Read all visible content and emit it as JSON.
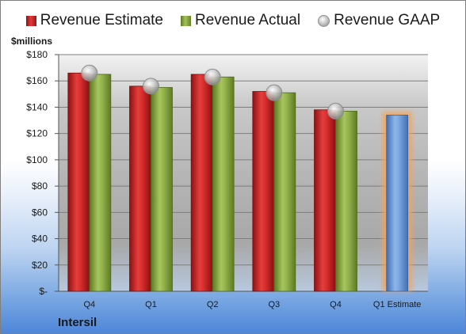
{
  "legend": {
    "estimate": "Revenue Estimate",
    "actual": "Revenue Actual",
    "gaap": "Revenue GAAP"
  },
  "colors": {
    "estimate": "#d42a2a",
    "actual": "#8aaa46",
    "gaap": "#c8c8c8",
    "forecast": "#6f9bd8",
    "forecast_glow": "#f2a45a"
  },
  "company": "Intersil",
  "chart_data": {
    "type": "bar",
    "ylabel": "$millions",
    "ylim": [
      0,
      180
    ],
    "yticks": [
      "$-",
      "$20",
      "$40",
      "$60",
      "$80",
      "$100",
      "$120",
      "$140",
      "$160",
      "$180"
    ],
    "categories": [
      "Q4",
      "Q1",
      "Q2",
      "Q3",
      "Q4",
      "Q1 Estimate"
    ],
    "series": [
      {
        "name": "Revenue Estimate",
        "values": [
          166,
          156,
          165,
          152,
          138,
          null
        ]
      },
      {
        "name": "Revenue Actual",
        "values": [
          165,
          155,
          163,
          151,
          137,
          null
        ]
      },
      {
        "name": "Revenue GAAP",
        "values": [
          166,
          156,
          163,
          151,
          137,
          null
        ]
      }
    ],
    "forecast": {
      "category": "Q1 Estimate",
      "value": 134
    },
    "grid": true,
    "legend_position": "top"
  }
}
